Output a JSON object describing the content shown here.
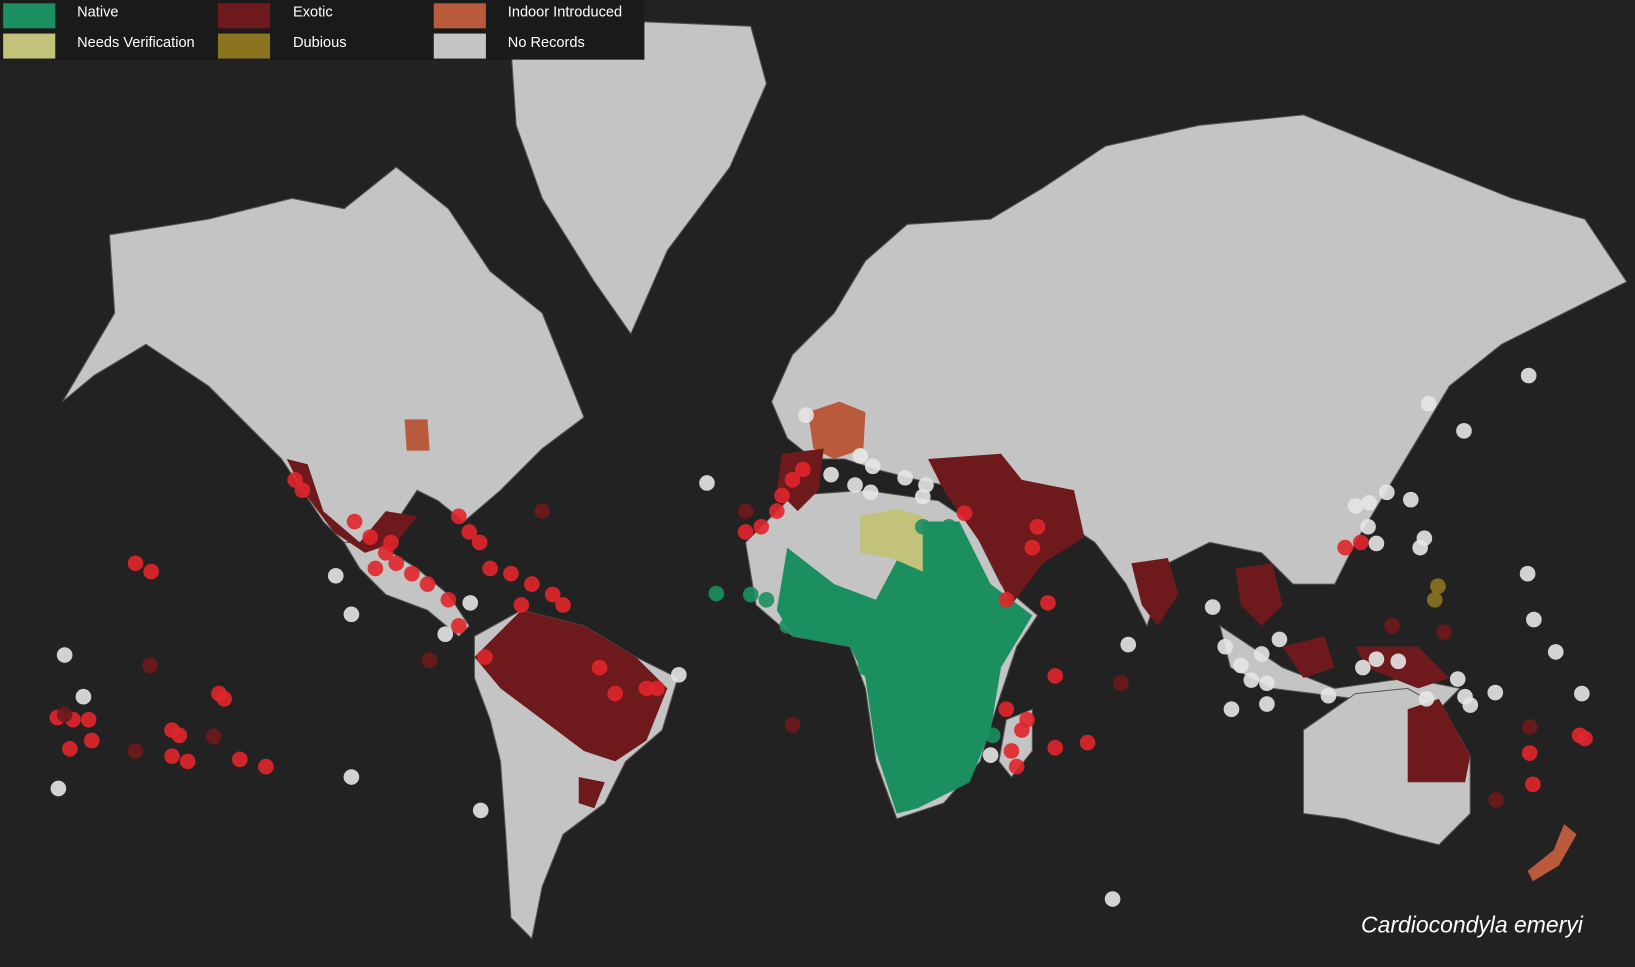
{
  "legend": {
    "items": [
      {
        "label": "Native",
        "color": "#1b8f5f"
      },
      {
        "label": "Exotic",
        "color": "#6e1a1c"
      },
      {
        "label": "Indoor Introduced",
        "color": "#b85a3b"
      },
      {
        "label": "Needs Verification",
        "color": "#c2c27a"
      },
      {
        "label": "Dubious",
        "color": "#8a7420"
      },
      {
        "label": "No Records",
        "color": "#c4c4c4"
      }
    ]
  },
  "caption": "Cardiocondyla emeryi"
}
